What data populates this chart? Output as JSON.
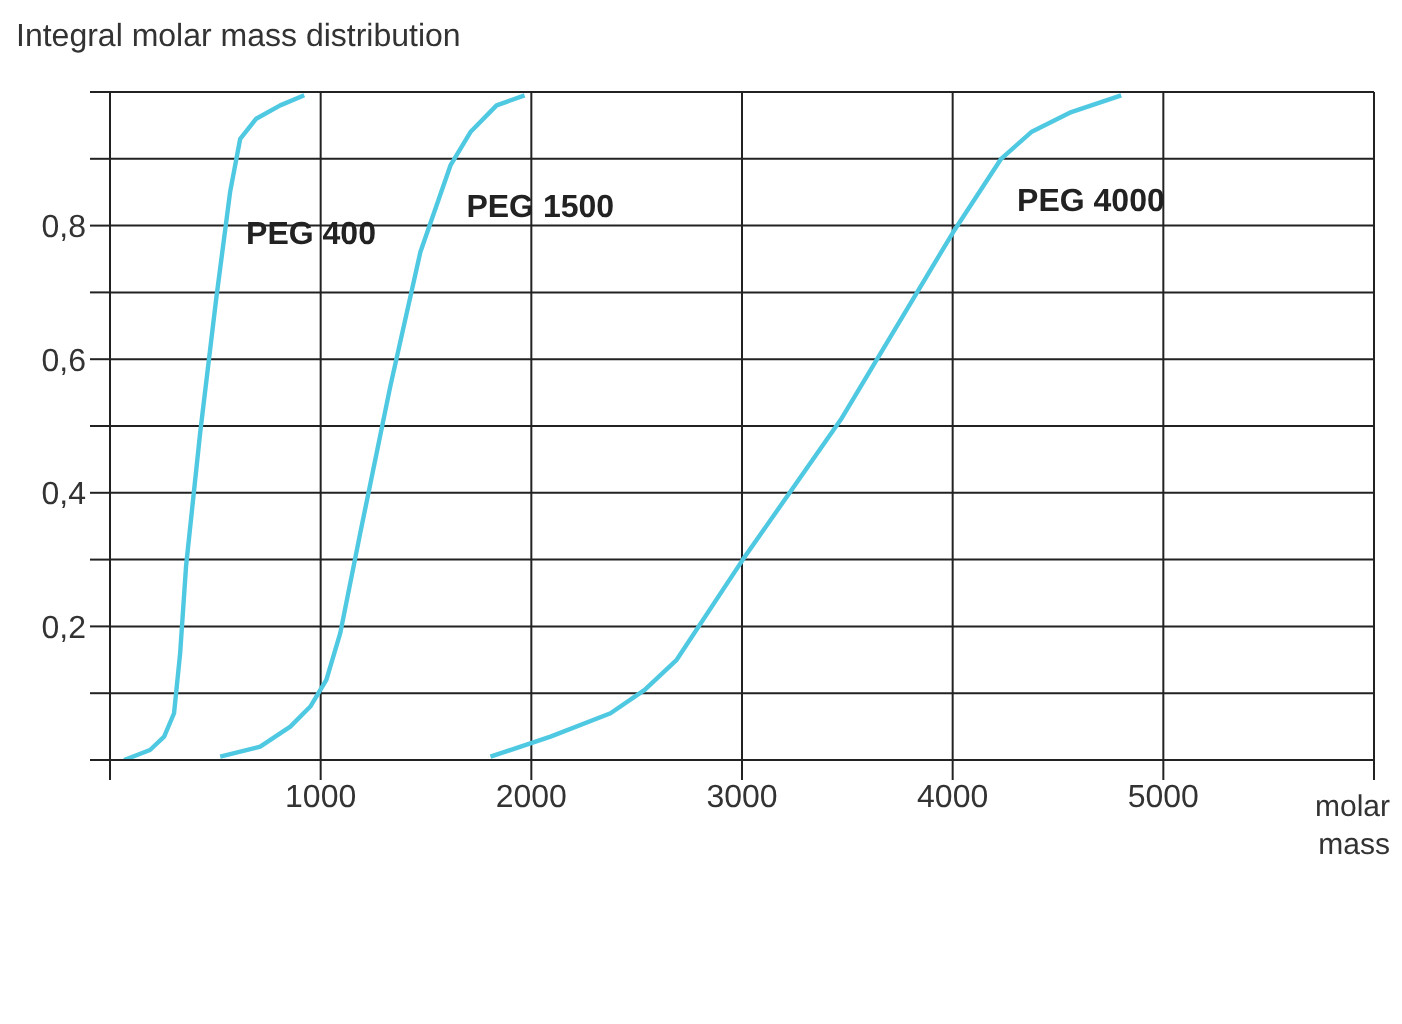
{
  "chart_data": {
    "type": "line",
    "title": "Integral molar mass distribution",
    "xlabel": "molar mass",
    "xlim": [
      0,
      6000
    ],
    "xticks": [
      {
        "value": 0,
        "label": null
      },
      1000,
      2000,
      3000,
      4000,
      5000,
      {
        "value": 6000,
        "label": null
      }
    ],
    "ylim": [
      0,
      1
    ],
    "yticks": [
      {
        "value": 0,
        "label": null
      },
      {
        "value": 0.1,
        "label": null
      },
      {
        "value": 0.2,
        "label": "0,2"
      },
      {
        "value": 0.3,
        "label": null
      },
      {
        "value": 0.4,
        "label": "0,4"
      },
      {
        "value": 0.5,
        "label": null
      },
      {
        "value": 0.6,
        "label": "0,6"
      },
      {
        "value": 0.7,
        "label": null
      },
      {
        "value": 0.8,
        "label": "0,8"
      },
      {
        "value": 0.9,
        "label": null
      },
      {
        "value": 1,
        "label": null
      }
    ],
    "grid": true,
    "marker": "none",
    "line_style": "solid",
    "series": [
      {
        "name": "PEG 400",
        "color": "#4ec9e1",
        "x": [
          67,
          190,
          257,
          304,
          333,
          361,
          428,
          504,
          570,
          618,
          694,
          808,
          922
        ],
        "values": [
          0,
          0.015,
          0.035,
          0.07,
          0.16,
          0.29,
          0.49,
          0.69,
          0.85,
          0.93,
          0.96,
          0.98,
          0.995
        ]
      },
      {
        "name": "PEG 1500",
        "color": "#4ec9e1",
        "x": [
          523,
          713,
          856,
          951,
          1027,
          1093,
          1188,
          1331,
          1473,
          1616,
          1711,
          1835,
          1968
        ],
        "values": [
          0.005,
          0.02,
          0.05,
          0.08,
          0.12,
          0.19,
          0.34,
          0.56,
          0.76,
          0.89,
          0.94,
          0.98,
          0.995
        ]
      },
      {
        "name": "PEG 4000",
        "color": "#4ec9e1",
        "x": [
          1806,
          2091,
          2376,
          2538,
          2690,
          3004,
          3470,
          4002,
          4230,
          4373,
          4563,
          4800
        ],
        "values": [
          0.005,
          0.035,
          0.07,
          0.105,
          0.15,
          0.3,
          0.51,
          0.79,
          0.9,
          0.94,
          0.97,
          0.995
        ]
      }
    ]
  }
}
